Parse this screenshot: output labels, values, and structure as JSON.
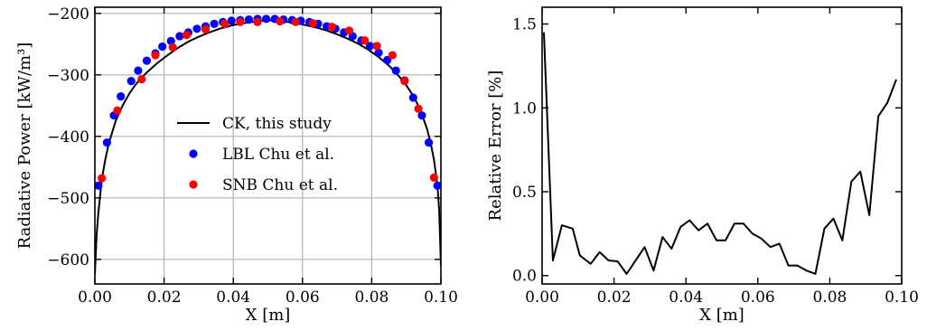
{
  "chart_data": [
    {
      "type": "scatter",
      "xlabel": "X [m]",
      "ylabel": "Radiative Power [kW/m³]",
      "xlim": [
        0.0,
        0.1
      ],
      "ylim": [
        -640,
        -190
      ],
      "xticks": [
        0.0,
        0.02,
        0.04,
        0.06,
        0.08,
        0.1
      ],
      "xtick_labels": [
        "0.00",
        "0.02",
        "0.04",
        "0.06",
        "0.08",
        "0.10"
      ],
      "yticks": [
        -600,
        -500,
        -400,
        -300,
        -200
      ],
      "ytick_labels": [
        "−600",
        "−500",
        "−400",
        "−300",
        "−200"
      ],
      "grid": true,
      "legend_position": "center",
      "series": [
        {
          "name": "CK, this study",
          "kind": "line",
          "color": "#000000",
          "x": [
            0.0,
            0.0005,
            0.001,
            0.002,
            0.003,
            0.004,
            0.006,
            0.008,
            0.01,
            0.012,
            0.015,
            0.018,
            0.021,
            0.024,
            0.027,
            0.03,
            0.033,
            0.036,
            0.04,
            0.044,
            0.048,
            0.05,
            0.052,
            0.056,
            0.06,
            0.064,
            0.067,
            0.07,
            0.073,
            0.076,
            0.079,
            0.082,
            0.085,
            0.088,
            0.09,
            0.092,
            0.094,
            0.096,
            0.097,
            0.098,
            0.099,
            0.0995,
            0.1
          ],
          "y": [
            -625,
            -560,
            -525,
            -470,
            -438,
            -412,
            -375,
            -350,
            -330,
            -314,
            -296,
            -281,
            -268,
            -256,
            -246,
            -238,
            -231,
            -225,
            -219,
            -215,
            -212,
            -211,
            -212,
            -214,
            -218,
            -223,
            -228,
            -234,
            -241,
            -249,
            -259,
            -271,
            -285,
            -303,
            -317,
            -334,
            -356,
            -388,
            -410,
            -438,
            -480,
            -520,
            -610
          ]
        },
        {
          "name": "LBL Chu et al.",
          "kind": "scatter",
          "color": "#0000ff",
          "x": [
            0.001,
            0.0035,
            0.0055,
            0.0075,
            0.0105,
            0.0125,
            0.015,
            0.0175,
            0.0195,
            0.022,
            0.0245,
            0.027,
            0.0295,
            0.032,
            0.0345,
            0.037,
            0.0395,
            0.042,
            0.0445,
            0.047,
            0.0495,
            0.052,
            0.0545,
            0.057,
            0.0595,
            0.062,
            0.0645,
            0.067,
            0.0695,
            0.072,
            0.0745,
            0.077,
            0.0795,
            0.082,
            0.0845,
            0.087,
            0.0895,
            0.092,
            0.0945,
            0.0965,
            0.099
          ],
          "y": [
            -480,
            -410,
            -366,
            -335,
            -310,
            -293,
            -277,
            -265,
            -254,
            -245,
            -237,
            -231,
            -225,
            -221,
            -217,
            -214,
            -212,
            -211,
            -210,
            -209,
            -209,
            -209,
            -210,
            -211,
            -212,
            -214,
            -217,
            -221,
            -225,
            -231,
            -237,
            -244,
            -253,
            -264,
            -276,
            -293,
            -309,
            -337,
            -366,
            -410,
            -480
          ]
        },
        {
          "name": "SNB Chu et al.",
          "kind": "scatter",
          "color": "#ff0000",
          "x": [
            0.002,
            0.0065,
            0.0135,
            0.0175,
            0.0225,
            0.0265,
            0.032,
            0.0375,
            0.042,
            0.047,
            0.0535,
            0.058,
            0.063,
            0.0685,
            0.0735,
            0.078,
            0.0815,
            0.086,
            0.0895,
            0.0935,
            0.098
          ],
          "y": [
            -468,
            -358,
            -307,
            -268,
            -255,
            -235,
            -226,
            -217,
            -214,
            -214,
            -213,
            -214,
            -216,
            -222,
            -228,
            -244,
            -253,
            -268,
            -310,
            -355,
            -467
          ]
        }
      ]
    },
    {
      "type": "line",
      "xlabel": "X [m]",
      "ylabel": "Relative Error [%]",
      "xlim": [
        0.0,
        0.1
      ],
      "ylim": [
        -0.05,
        1.6
      ],
      "xticks": [
        0.0,
        0.02,
        0.04,
        0.06,
        0.08,
        0.1
      ],
      "xtick_labels": [
        "0.00",
        "0.02",
        "0.04",
        "0.06",
        "0.08",
        "0.10"
      ],
      "yticks": [
        0.0,
        0.5,
        1.0,
        1.5
      ],
      "ytick_labels": [
        "0.0",
        "0.5",
        "1.0",
        "1.5"
      ],
      "grid": false,
      "series": [
        {
          "color": "#000000",
          "x": [
            0.0005,
            0.003,
            0.0055,
            0.0085,
            0.0105,
            0.0135,
            0.016,
            0.0185,
            0.021,
            0.0235,
            0.026,
            0.0285,
            0.031,
            0.0335,
            0.036,
            0.0385,
            0.041,
            0.0435,
            0.046,
            0.0485,
            0.051,
            0.0535,
            0.056,
            0.0585,
            0.061,
            0.0635,
            0.066,
            0.0685,
            0.071,
            0.0735,
            0.076,
            0.0785,
            0.081,
            0.0835,
            0.086,
            0.0885,
            0.091,
            0.0935,
            0.096,
            0.0985
          ],
          "y": [
            1.45,
            0.09,
            0.3,
            0.28,
            0.12,
            0.07,
            0.14,
            0.09,
            0.085,
            0.01,
            0.09,
            0.17,
            0.03,
            0.23,
            0.16,
            0.29,
            0.33,
            0.27,
            0.31,
            0.21,
            0.21,
            0.31,
            0.31,
            0.25,
            0.22,
            0.17,
            0.19,
            0.06,
            0.06,
            0.03,
            0.01,
            0.28,
            0.34,
            0.21,
            0.56,
            0.62,
            0.36,
            0.95,
            1.03,
            1.17
          ]
        }
      ]
    }
  ]
}
